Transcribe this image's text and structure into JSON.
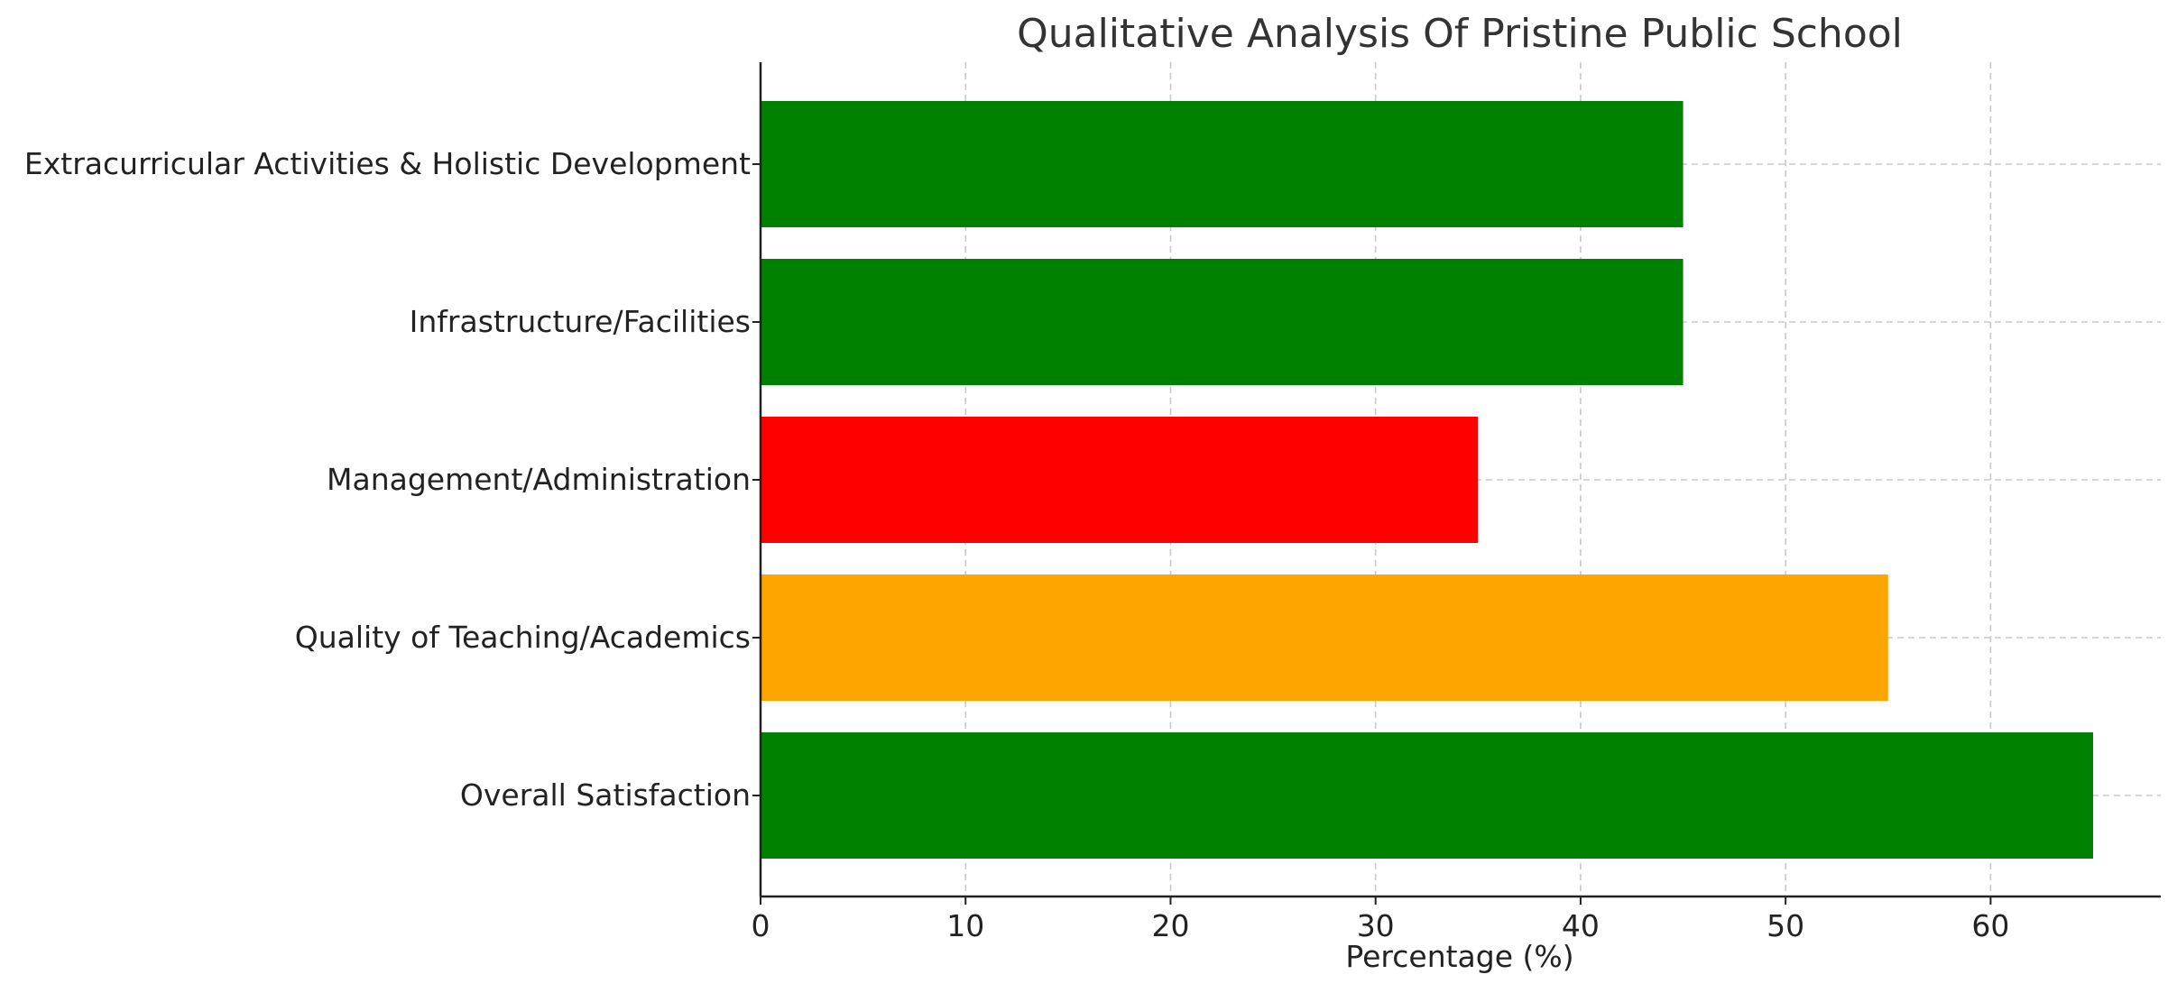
{
  "chart_data": {
    "type": "bar",
    "orientation": "horizontal",
    "title": "Qualitative Analysis Of Pristine Public School",
    "xlabel": "Percentage (%)",
    "ylabel": "",
    "xlim": [
      0,
      68.3
    ],
    "xticks": [
      "0",
      "10",
      "20",
      "30",
      "40",
      "50",
      "60"
    ],
    "grid": true,
    "categories": [
      "Overall Satisfaction",
      "Quality of Teaching/Academics",
      "Management/Administration",
      "Infrastructure/Facilities",
      "Extracurricular Activities & Holistic Development"
    ],
    "values": [
      65,
      55,
      35,
      45,
      45
    ],
    "colors": [
      "#008000",
      "#ffa500",
      "#ff0000",
      "#008000",
      "#008000"
    ]
  }
}
